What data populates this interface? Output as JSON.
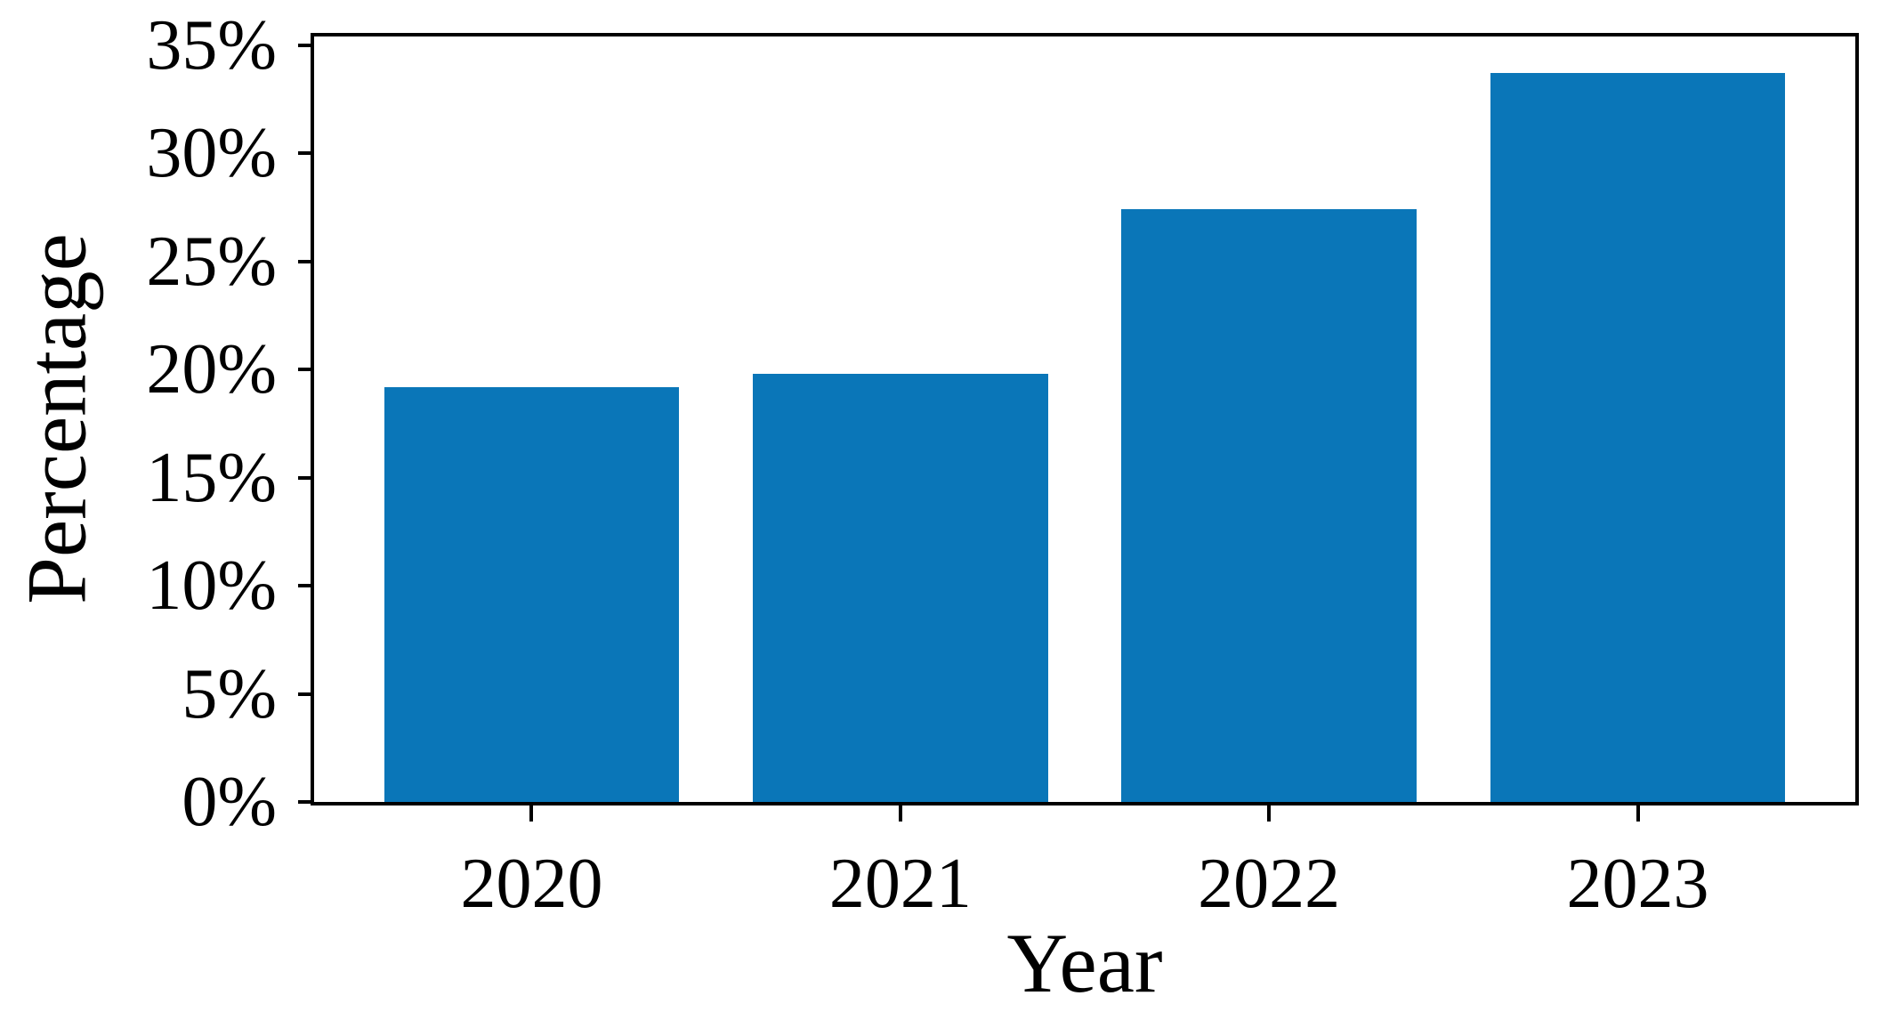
{
  "figure": {
    "background_color": "#ffffff",
    "text_color": "#000000",
    "frame_color": "#000000"
  },
  "chart_data": {
    "type": "bar",
    "title": "",
    "xlabel": "Year",
    "ylabel": "Percentage",
    "categories": [
      "2020",
      "2021",
      "2022",
      "2023"
    ],
    "values": [
      19.2,
      19.8,
      27.4,
      33.7
    ],
    "series": [
      {
        "name": "Percentage",
        "values": [
          19.2,
          19.8,
          27.4,
          33.7
        ]
      }
    ],
    "yticks": [
      {
        "value": 0,
        "label": "0%"
      },
      {
        "value": 5,
        "label": "5%"
      },
      {
        "value": 10,
        "label": "10%"
      },
      {
        "value": 15,
        "label": "15%"
      },
      {
        "value": 20,
        "label": "20%"
      },
      {
        "value": 25,
        "label": "25%"
      },
      {
        "value": 30,
        "label": "30%"
      },
      {
        "value": 35,
        "label": "35%"
      }
    ],
    "ylim": [
      0,
      35.4
    ],
    "xlim_units": [
      -0.59,
      3.59
    ],
    "bar_width_fraction": 0.8,
    "bar_color": "#0a76b8",
    "grid": false,
    "legend": "none",
    "frame": "full-box"
  }
}
